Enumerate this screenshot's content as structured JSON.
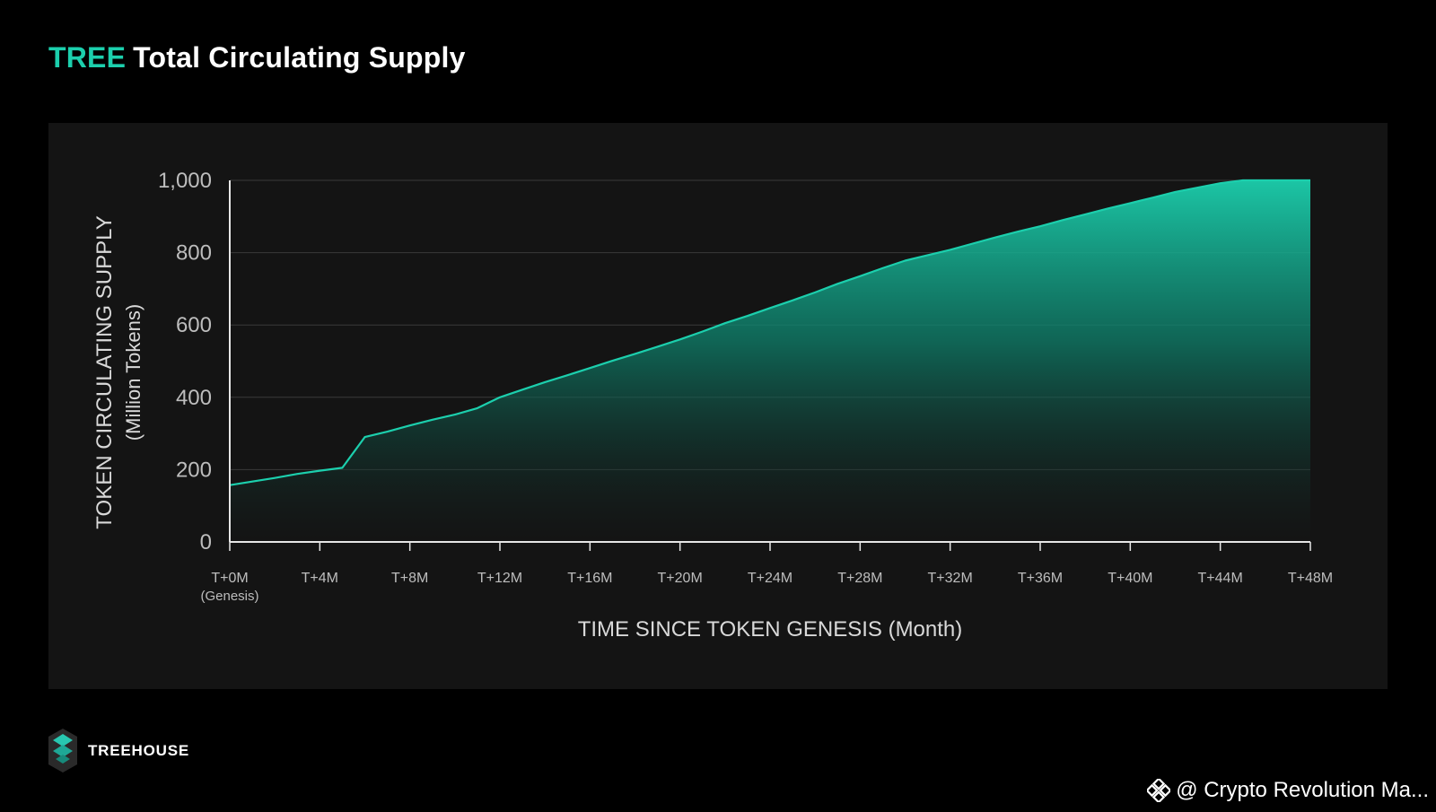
{
  "page": {
    "title_accent": "TREE",
    "title_rest": "Total Circulating Supply",
    "accent_color": "#1ccfad"
  },
  "brand": {
    "logo_icon": "treehouse-logo-icon",
    "name": "TREEHOUSE"
  },
  "watermark": {
    "icon": "binance-diamond-icon",
    "text": "@ Crypto Revolution Ma..."
  },
  "chart_data": {
    "type": "area",
    "ylabel": "TOKEN CIRCULATING SUPPLY",
    "ylabel_unit": "(Million Tokens)",
    "xlabel": "TIME SINCE TOKEN GENESIS (Month)",
    "xlim": [
      0,
      48
    ],
    "ylim": [
      0,
      1000
    ],
    "yticks": [
      0,
      200,
      400,
      600,
      800,
      1000
    ],
    "ytick_labels": [
      "0",
      "200",
      "400",
      "600",
      "800",
      "1,000"
    ],
    "xticks": [
      0,
      4,
      8,
      12,
      16,
      20,
      24,
      28,
      32,
      36,
      40,
      44,
      48
    ],
    "xtick_labels": [
      "T+0M",
      "T+4M",
      "T+8M",
      "T+12M",
      "T+16M",
      "T+20M",
      "T+24M",
      "T+28M",
      "T+32M",
      "T+36M",
      "T+40M",
      "T+44M",
      "T+48M"
    ],
    "xtick_sublabels": [
      "(Genesis)",
      "",
      "",
      "",
      "",
      "",
      "",
      "",
      "",
      "",
      "",
      "",
      ""
    ],
    "grid": true,
    "line_color": "#1ccfad",
    "series": [
      {
        "x": [
          0,
          1,
          2,
          3,
          4,
          5,
          6,
          7,
          8,
          9,
          10,
          11,
          12,
          13,
          14,
          15,
          16,
          17,
          18,
          19,
          20,
          21,
          22,
          23,
          24,
          25,
          26,
          27,
          28,
          29,
          30,
          31,
          32,
          33,
          34,
          35,
          36,
          37,
          38,
          39,
          40,
          41,
          42,
          43,
          44,
          45,
          46,
          47,
          48
        ],
        "values": [
          157,
          167,
          177,
          188,
          197,
          205,
          290,
          305,
          322,
          338,
          352,
          370,
          400,
          421,
          442,
          461,
          481,
          501,
          520,
          540,
          560,
          582,
          605,
          625,
          647,
          668,
          690,
          714,
          735,
          757,
          778,
          793,
          808,
          825,
          842,
          858,
          873,
          890,
          906,
          922,
          937,
          952,
          968,
          980,
          992,
          1003,
          1013,
          1025,
          1035
        ]
      }
    ]
  }
}
